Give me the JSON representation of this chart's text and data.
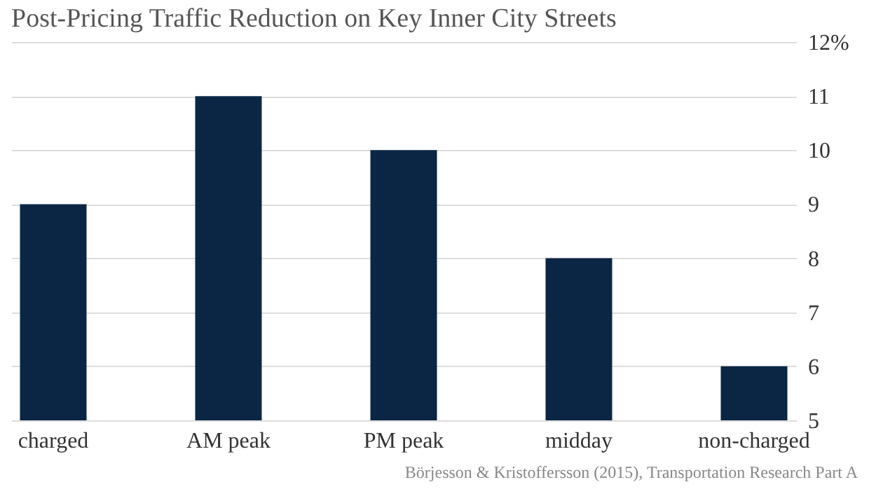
{
  "chart_data": {
    "type": "bar",
    "title": "Post-Pricing Traffic Reduction on Key Inner City Streets",
    "categories": [
      "charged",
      "AM peak",
      "PM peak",
      "midday",
      "non-charged"
    ],
    "values": [
      9,
      11,
      10,
      8,
      6
    ],
    "color": "#0b2645",
    "ylim": [
      5,
      12
    ],
    "yticks": [
      5,
      6,
      7,
      8,
      9,
      10,
      11,
      {
        "value": 12,
        "label": "12%"
      }
    ],
    "grid": "y",
    "annotations": [
      "Börjesson & Kristoffersson (2015), Transportation Research Part A"
    ]
  }
}
